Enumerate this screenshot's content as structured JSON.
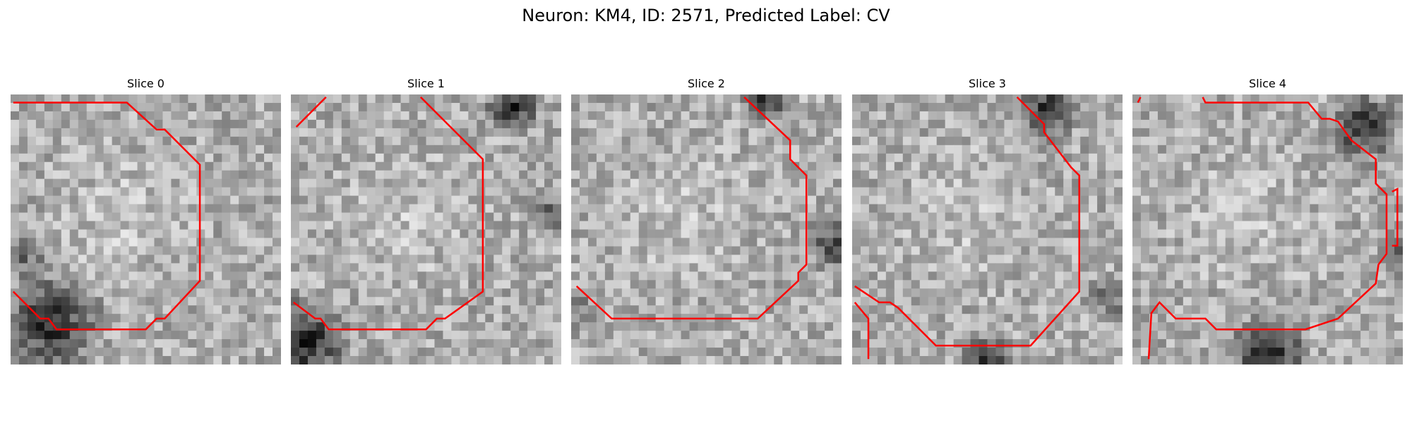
{
  "title": "Neuron: KM4, ID: 2571, Predicted Label: CV",
  "panels": [
    {
      "title": "Slice 0",
      "seed": 11
    },
    {
      "title": "Slice 1",
      "seed": 23
    },
    {
      "title": "Slice 2",
      "seed": 37
    },
    {
      "title": "Slice 3",
      "seed": 53
    },
    {
      "title": "Slice 4",
      "seed": 71
    }
  ],
  "colors": {
    "contour": "#ff0000",
    "background": "#ffffff"
  }
}
